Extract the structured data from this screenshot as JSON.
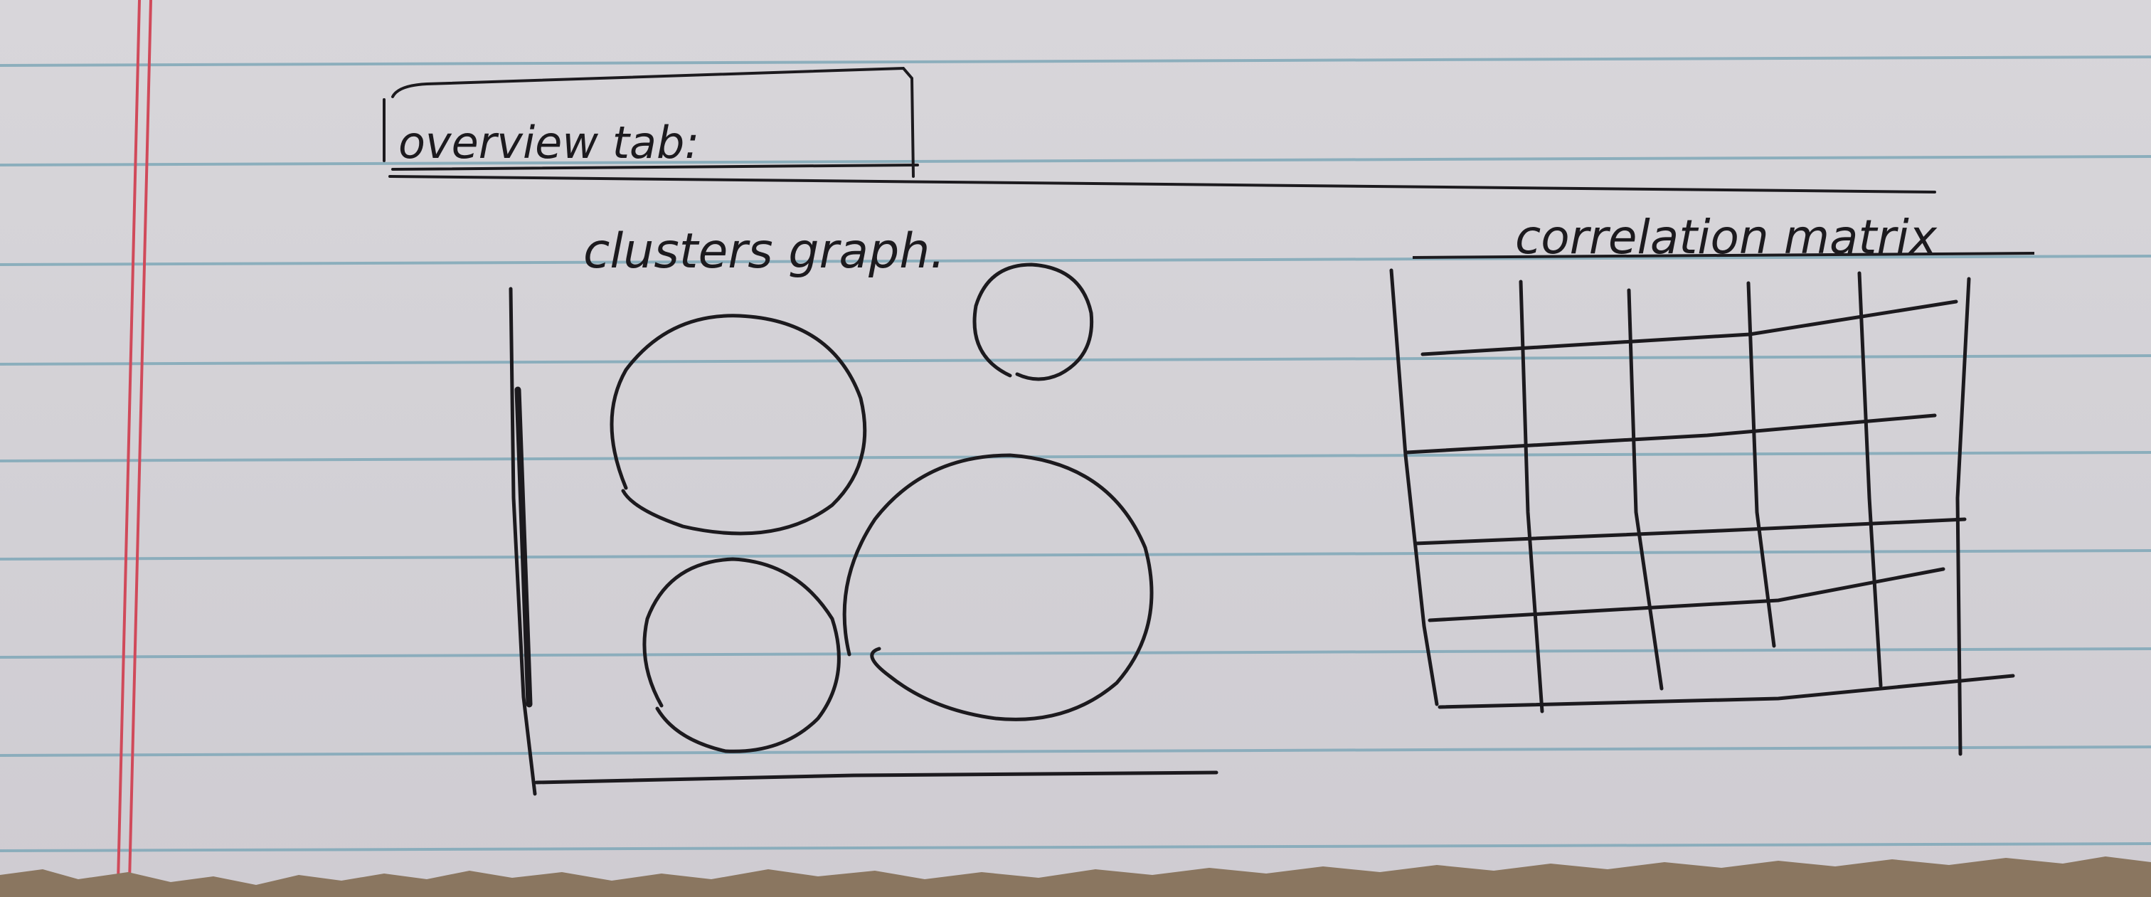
{
  "sheet": {
    "paper_color": "#d6d4d8",
    "rule_color": "#7fa8b8",
    "margin_color": "#d04a5a",
    "ink_color": "#1c1a1e",
    "torn_edge_color": "#8a7660"
  },
  "heading": {
    "text": "overview tab:"
  },
  "clusters_panel": {
    "title": "clusters graph."
  },
  "matrix_panel": {
    "title": "correlation matrix"
  }
}
